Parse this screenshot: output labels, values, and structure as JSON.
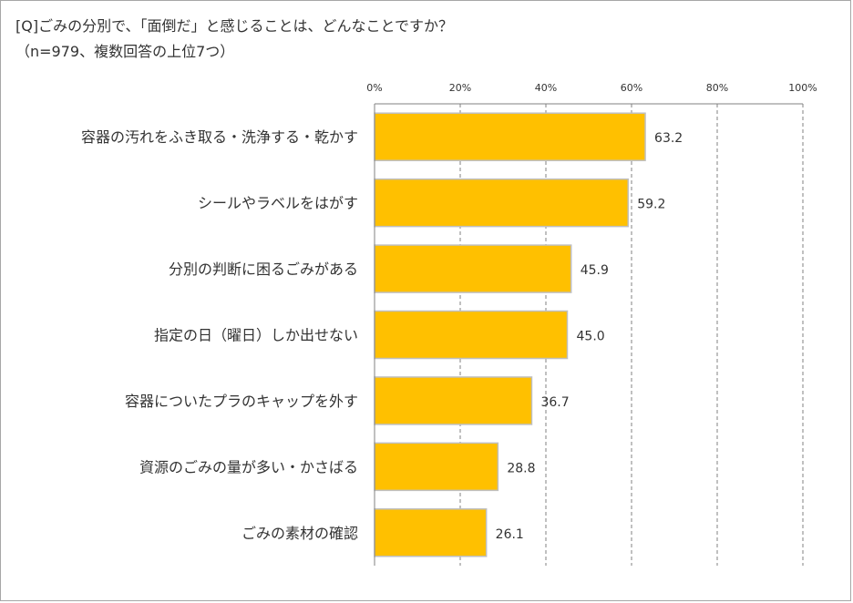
{
  "title_line1": "[Q]ごみの分別で、「面倒だ」と感じることは、どんなことですか？",
  "title_line2": "（n=979、複数回答の上位7つ）",
  "chart_data": {
    "type": "bar",
    "orientation": "horizontal",
    "categories": [
      "容器の汚れをふき取る・洗浄する・乾かす",
      "シールやラベルをはがす",
      "分別の判断に困るごみがある",
      "指定の日（曜日）しか出せない",
      "容器についたプラのキャップを外す",
      "資源のごみの量が多い・かさばる",
      "ごみの素材の確認"
    ],
    "values": [
      63.2,
      59.2,
      45.9,
      45.0,
      36.7,
      28.8,
      26.1
    ],
    "value_labels": [
      "63.2",
      "59.2",
      "45.9",
      "45.0",
      "36.7",
      "28.8",
      "26.1"
    ],
    "xlim": [
      0,
      100
    ],
    "x_ticks": [
      0,
      20,
      40,
      60,
      80,
      100
    ],
    "x_tick_labels": [
      "0%",
      "20%",
      "40%",
      "60%",
      "80%",
      "100%"
    ],
    "xlabel": "",
    "ylabel": "",
    "gridlines": "vertical-dashed",
    "axis_position": "top",
    "legend": "none",
    "colors": {
      "bar_fill": "#FFC000",
      "bar_stroke": "#BFBFBF",
      "grid": "#808080",
      "text": "#333333"
    }
  }
}
